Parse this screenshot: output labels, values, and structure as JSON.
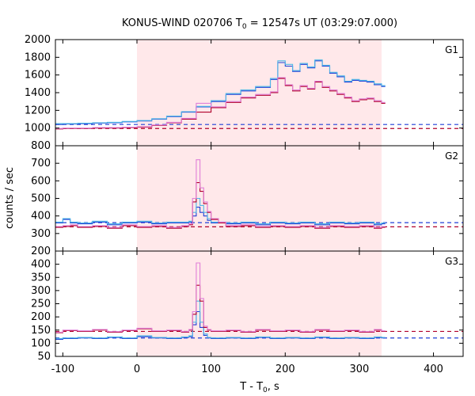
{
  "chart_data": {
    "type": "line",
    "title": {
      "pre": "KONUS-WIND 020706 T",
      "sub": "0",
      "post": " = 12547s UT (03:29:07.000)"
    },
    "xlabel": {
      "pre": "T - T",
      "sub": "0",
      "post": ", s"
    },
    "ylabel": "counts / sec",
    "xlim": [
      -110,
      440
    ],
    "xticks": [
      -100,
      0,
      100,
      200,
      300,
      400
    ],
    "shaded_interval": [
      0,
      330
    ],
    "colors": {
      "shade": "#ffe8ea",
      "red": "#b0002a",
      "blue": "#1f3fd6",
      "light_blue": "#4fb8e6",
      "pink": "#e080d8"
    },
    "panels": [
      {
        "name": "G1",
        "ylim": [
          800,
          2000
        ],
        "yticks": [
          800,
          1000,
          1200,
          1400,
          1600,
          1800,
          2000
        ],
        "background_levels": {
          "blue": 1040,
          "red": 995
        },
        "series": [
          {
            "color": "blue",
            "x": [
              -110,
              -100,
              -80,
              -60,
              -40,
              -20,
              0,
              20,
              40,
              60,
              80,
              100,
              120,
              140,
              160,
              180,
              190,
              200,
              210,
              220,
              230,
              240,
              250,
              260,
              270,
              280,
              290,
              300,
              310,
              320,
              330
            ],
            "values": [
              1040,
              1045,
              1050,
              1055,
              1060,
              1070,
              1080,
              1100,
              1130,
              1180,
              1240,
              1300,
              1380,
              1420,
              1460,
              1550,
              1740,
              1700,
              1640,
              1720,
              1680,
              1760,
              1700,
              1620,
              1580,
              1520,
              1540,
              1530,
              1520,
              1490,
              1470
            ]
          },
          {
            "color": "light_blue",
            "x": [
              -110,
              -100,
              -80,
              -60,
              -40,
              -20,
              0,
              20,
              40,
              60,
              80,
              100,
              120,
              140,
              160,
              180,
              190,
              200,
              210,
              220,
              230,
              240,
              250,
              260,
              270,
              280,
              290,
              300,
              310,
              320,
              330
            ],
            "values": [
              1050,
              1050,
              1055,
              1060,
              1065,
              1075,
              1085,
              1105,
              1135,
              1185,
              1245,
              1310,
              1390,
              1430,
              1470,
              1560,
              1760,
              1720,
              1650,
              1730,
              1690,
              1770,
              1710,
              1630,
              1590,
              1530,
              1550,
              1540,
              1530,
              1500,
              1480
            ]
          },
          {
            "color": "red",
            "x": [
              -110,
              -100,
              -80,
              -60,
              -40,
              -20,
              0,
              20,
              40,
              60,
              80,
              100,
              120,
              140,
              160,
              180,
              190,
              200,
              210,
              220,
              230,
              240,
              250,
              260,
              270,
              280,
              290,
              300,
              310,
              320,
              330
            ],
            "values": [
              990,
              995,
              995,
              1000,
              1000,
              1005,
              1010,
              1030,
              1060,
              1100,
              1180,
              1230,
              1290,
              1340,
              1370,
              1400,
              1560,
              1480,
              1420,
              1470,
              1440,
              1520,
              1460,
              1420,
              1380,
              1340,
              1300,
              1320,
              1330,
              1300,
              1280
            ]
          },
          {
            "color": "pink",
            "x": [
              -110,
              -100,
              -80,
              -60,
              -40,
              -20,
              0,
              20,
              40,
              60,
              80,
              100,
              120,
              140,
              160,
              180,
              190,
              200,
              210,
              220,
              230,
              240,
              250,
              260,
              270,
              280,
              290,
              300,
              310,
              320,
              330
            ],
            "values": [
              995,
              1000,
              1000,
              1005,
              1005,
              1010,
              1015,
              1035,
              1065,
              1110,
              1280,
              1240,
              1300,
              1350,
              1380,
              1410,
              1570,
              1490,
              1430,
              1480,
              1450,
              1530,
              1470,
              1430,
              1390,
              1350,
              1310,
              1330,
              1340,
              1310,
              1290
            ]
          }
        ]
      },
      {
        "name": "G2",
        "ylim": [
          200,
          800
        ],
        "yticks": [
          200,
          300,
          400,
          500,
          600,
          700,
          800
        ],
        "background_levels": {
          "blue": 362,
          "red": 338
        },
        "series": [
          {
            "color": "blue",
            "x": [
              -110,
              -100,
              -90,
              -80,
              -60,
              -40,
              -20,
              0,
              20,
              40,
              60,
              70,
              75,
              80,
              85,
              90,
              95,
              100,
              110,
              120,
              140,
              160,
              180,
              200,
              220,
              240,
              260,
              280,
              300,
              320,
              330
            ],
            "values": [
              360,
              380,
              360,
              355,
              365,
              350,
              360,
              365,
              355,
              360,
              360,
              365,
              400,
              450,
              420,
              400,
              375,
              360,
              360,
              355,
              360,
              350,
              360,
              355,
              360,
              350,
              360,
              355,
              360,
              350,
              355
            ]
          },
          {
            "color": "light_blue",
            "x": [
              -110,
              -100,
              -90,
              -80,
              -60,
              -40,
              -20,
              0,
              20,
              40,
              60,
              70,
              75,
              80,
              85,
              90,
              95,
              100,
              110,
              120,
              140,
              160,
              180,
              200,
              220,
              240,
              260,
              280,
              300,
              320,
              330
            ],
            "values": [
              365,
              385,
              365,
              360,
              370,
              355,
              365,
              370,
              360,
              365,
              365,
              370,
              420,
              500,
              460,
              420,
              385,
              365,
              365,
              360,
              365,
              355,
              365,
              360,
              365,
              355,
              365,
              360,
              365,
              355,
              360
            ]
          },
          {
            "color": "red",
            "x": [
              -110,
              -100,
              -90,
              -80,
              -60,
              -40,
              -20,
              0,
              20,
              40,
              60,
              70,
              75,
              80,
              85,
              90,
              95,
              100,
              110,
              120,
              140,
              160,
              180,
              200,
              220,
              240,
              260,
              280,
              300,
              320,
              330
            ],
            "values": [
              335,
              340,
              345,
              335,
              340,
              330,
              345,
              335,
              340,
              330,
              340,
              350,
              480,
              590,
              540,
              470,
              420,
              380,
              360,
              340,
              345,
              335,
              340,
              335,
              340,
              330,
              340,
              335,
              340,
              330,
              335
            ]
          },
          {
            "color": "pink",
            "x": [
              -110,
              -100,
              -90,
              -80,
              -60,
              -40,
              -20,
              0,
              20,
              40,
              60,
              70,
              75,
              80,
              85,
              90,
              95,
              100,
              110,
              120,
              140,
              160,
              180,
              200,
              220,
              240,
              260,
              280,
              300,
              320,
              330
            ],
            "values": [
              340,
              345,
              350,
              340,
              345,
              335,
              350,
              340,
              345,
              335,
              345,
              355,
              500,
              720,
              560,
              480,
              425,
              385,
              365,
              345,
              350,
              340,
              345,
              340,
              345,
              335,
              345,
              340,
              345,
              335,
              340
            ]
          }
        ]
      },
      {
        "name": "G3",
        "ylim": [
          50,
          450
        ],
        "yticks": [
          50,
          100,
          150,
          200,
          250,
          300,
          350,
          400,
          450
        ],
        "background_levels": {
          "blue": 120,
          "red": 145
        },
        "series": [
          {
            "color": "blue",
            "x": [
              -110,
              -100,
              -80,
              -60,
              -40,
              -20,
              0,
              20,
              40,
              60,
              70,
              75,
              80,
              85,
              90,
              95,
              100,
              120,
              140,
              160,
              180,
              200,
              220,
              240,
              260,
              280,
              300,
              320,
              330
            ],
            "values": [
              115,
              118,
              120,
              118,
              122,
              118,
              125,
              120,
              118,
              122,
              125,
              170,
              220,
              160,
              130,
              120,
              118,
              120,
              118,
              122,
              118,
              120,
              118,
              122,
              118,
              120,
              118,
              122,
              120
            ]
          },
          {
            "color": "light_blue",
            "x": [
              -110,
              -100,
              -80,
              -60,
              -40,
              -20,
              0,
              20,
              40,
              60,
              70,
              75,
              80,
              85,
              90,
              95,
              100,
              120,
              140,
              160,
              180,
              200,
              220,
              240,
              260,
              280,
              300,
              320,
              330
            ],
            "values": [
              118,
              120,
              122,
              120,
              124,
              120,
              128,
              122,
              120,
              124,
              128,
              180,
              260,
              180,
              135,
              122,
              120,
              122,
              120,
              124,
              120,
              122,
              120,
              124,
              120,
              122,
              120,
              124,
              122
            ]
          },
          {
            "color": "red",
            "x": [
              -110,
              -100,
              -80,
              -60,
              -40,
              -20,
              0,
              20,
              40,
              60,
              70,
              75,
              80,
              85,
              90,
              95,
              100,
              120,
              140,
              160,
              180,
              200,
              220,
              240,
              260,
              280,
              300,
              320,
              330
            ],
            "values": [
              140,
              148,
              145,
              150,
              142,
              148,
              155,
              145,
              148,
              142,
              150,
              210,
              320,
              260,
              160,
              150,
              145,
              148,
              142,
              150,
              145,
              148,
              142,
              150,
              145,
              148,
              142,
              150,
              145
            ]
          },
          {
            "color": "pink",
            "x": [
              -110,
              -100,
              -80,
              -60,
              -40,
              -20,
              0,
              20,
              40,
              60,
              70,
              75,
              80,
              85,
              90,
              95,
              100,
              120,
              140,
              160,
              180,
              200,
              220,
              240,
              260,
              280,
              300,
              320,
              330
            ],
            "values": [
              142,
              150,
              147,
              152,
              144,
              150,
              157,
              147,
              150,
              144,
              152,
              220,
              405,
              270,
              165,
              152,
              147,
              150,
              144,
              152,
              147,
              150,
              144,
              152,
              147,
              150,
              144,
              152,
              147
            ]
          }
        ]
      }
    ]
  }
}
